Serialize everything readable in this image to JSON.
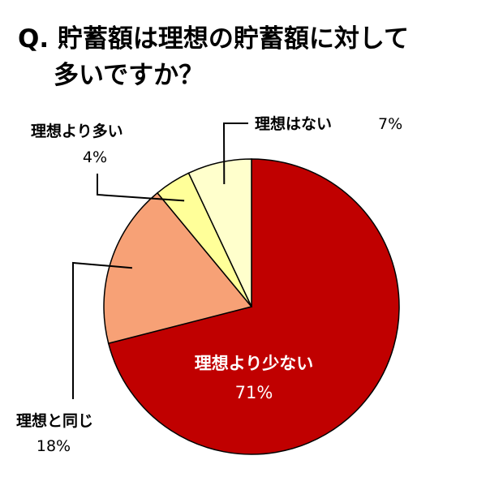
{
  "chart_data": {
    "type": "pie",
    "title": "Q. 貯蓄額は理想の貯蓄額に対して多いですか？",
    "title_lines": [
      "Q. 貯蓄額は理想の貯蓄額に対して",
      "多いですか？"
    ],
    "slices": [
      {
        "label": "理想より少ない",
        "value": 71,
        "value_text": "71%",
        "color": "#c00000"
      },
      {
        "label": "理想と同じ",
        "value": 18,
        "value_text": "18%",
        "color": "#f7a176"
      },
      {
        "label": "理想より多い",
        "value": 4,
        "value_text": "4%",
        "color": "#ffff99"
      },
      {
        "label": "理想はない",
        "value": 7,
        "value_text": "7%",
        "color": "#ffffcc"
      }
    ],
    "start_angle_deg": 0,
    "direction": "clockwise",
    "legend": "none"
  }
}
